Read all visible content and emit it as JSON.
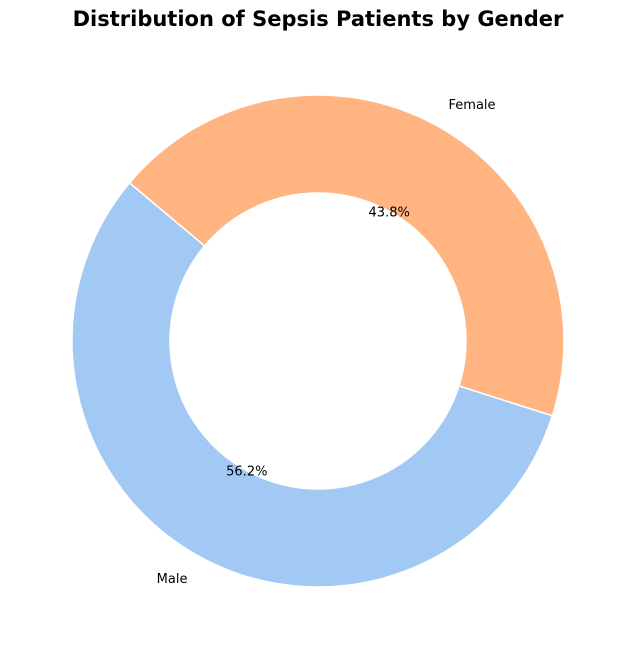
{
  "chart_data": {
    "type": "pie",
    "variant": "donut",
    "title": "Distribution of Sepsis Patients by Gender",
    "categories": [
      "Male",
      "Female"
    ],
    "values": [
      56.2,
      43.8
    ],
    "percent_labels": [
      "56.2%",
      "43.8%"
    ],
    "colors": [
      "#a1c9f4",
      "#ffb482"
    ],
    "start_angle_deg": 140,
    "direction": "counterclockwise",
    "legend": "none"
  }
}
